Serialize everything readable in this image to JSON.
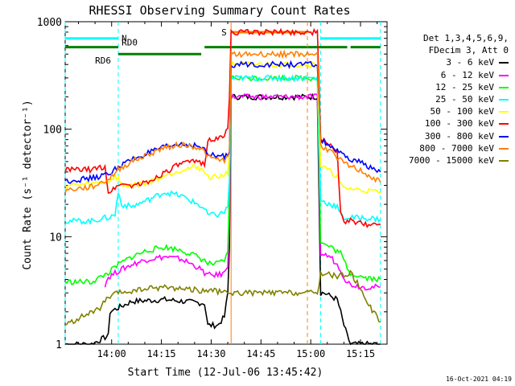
{
  "chart_data": {
    "type": "line",
    "title": "RHESSI Observing Summary Count Rates",
    "xlabel": "Start Time (12-Jul-06 13:45:42)",
    "ylabel": "Count Rate (s⁻¹ detector⁻¹)",
    "yscale": "log",
    "xlim": [
      0,
      97
    ],
    "ylim": [
      1,
      1000
    ],
    "x_ticks": [
      {
        "m": 14,
        "label": "14:00"
      },
      {
        "m": 29,
        "label": "14:15"
      },
      {
        "m": 44,
        "label": "14:30"
      },
      {
        "m": 59,
        "label": "14:45"
      },
      {
        "m": 74,
        "label": "15:00"
      },
      {
        "m": 89,
        "label": "15:15"
      }
    ],
    "y_ticks": [
      {
        "v": 1,
        "label": "1"
      },
      {
        "v": 10,
        "label": "10"
      },
      {
        "v": 100,
        "label": "100"
      },
      {
        "v": 1000,
        "label": "1000"
      }
    ],
    "legend_header": [
      "Det 1,3,4,5,6,9,",
      "FDecim 3, Att 0"
    ],
    "series": [
      {
        "name": "3 - 6 keV",
        "color": "#000000",
        "x": [
          0,
          8,
          13,
          13.5,
          20,
          30,
          42,
          43,
          46,
          48,
          49,
          49.5,
          50,
          76,
          77,
          78,
          80,
          82,
          83,
          84,
          85,
          86,
          90,
          92,
          95
        ],
        "values": [
          1,
          1,
          1.2,
          2,
          2.5,
          2.6,
          2.4,
          1.5,
          1.5,
          1.8,
          3,
          8,
          200,
          200,
          3,
          3,
          2.8,
          2.6,
          2,
          1.5,
          1.2,
          1,
          1,
          1,
          1
        ]
      },
      {
        "name": "6 - 12 keV",
        "color": "#ff00ff",
        "x": [
          12,
          13,
          16,
          20,
          25,
          30,
          35,
          40,
          42,
          43,
          46,
          48,
          49,
          49.5,
          50,
          76,
          77,
          78,
          80,
          83,
          84,
          85,
          86,
          90,
          95
        ],
        "values": [
          3.6,
          4.2,
          4.8,
          5.5,
          6.2,
          6.5,
          6.2,
          5.2,
          4.6,
          4.4,
          4.4,
          4.6,
          5.5,
          15,
          200,
          200,
          7,
          6.8,
          6.5,
          5,
          4.2,
          3.8,
          3.6,
          3.4,
          3.4
        ]
      },
      {
        "name": "12 - 25 keV",
        "color": "#00ff00",
        "x": [
          0,
          8,
          13,
          16,
          20,
          25,
          30,
          35,
          40,
          42,
          43,
          46,
          48,
          49,
          49.5,
          50,
          76,
          77,
          78,
          80,
          83,
          84,
          85,
          86,
          90,
          95
        ],
        "values": [
          3.8,
          3.8,
          4.6,
          5.5,
          6.5,
          7.5,
          8,
          7.5,
          6.5,
          6,
          5.6,
          5.6,
          6,
          7,
          25,
          300,
          300,
          9,
          8.5,
          8,
          7,
          6,
          5.2,
          4.6,
          4.2,
          4
        ]
      },
      {
        "name": "25 - 50 keV",
        "color": "#00ffff",
        "x": [
          0,
          8,
          12,
          13,
          15,
          16,
          17,
          20,
          25,
          30,
          35,
          40,
          42,
          43,
          46,
          48,
          49,
          49.5,
          50,
          76,
          77,
          78,
          80,
          82,
          83,
          84,
          86,
          90,
          95
        ],
        "values": [
          14,
          14,
          15,
          15,
          16,
          26,
          20,
          19,
          22,
          26,
          24,
          20,
          18,
          16,
          16,
          17,
          19,
          35,
          300,
          300,
          22,
          21,
          20,
          19,
          16,
          15,
          15,
          15,
          14.5
        ]
      },
      {
        "name": "50 - 100 keV",
        "color": "#ffff00",
        "x": [
          0,
          8,
          13,
          15,
          16,
          17,
          20,
          25,
          30,
          35,
          40,
          42,
          43,
          46,
          48,
          49,
          49.5,
          50,
          76,
          77,
          78,
          80,
          82,
          83,
          84,
          86,
          90,
          95
        ],
        "values": [
          30,
          31,
          33,
          36,
          35,
          30,
          30,
          32,
          37,
          42,
          45,
          40,
          36,
          36,
          38,
          40,
          60,
          400,
          400,
          45,
          44,
          40,
          36,
          30,
          28,
          28,
          27,
          26
        ]
      },
      {
        "name": "100 - 300 keV",
        "color": "#ff0000",
        "x": [
          0,
          8,
          12,
          13,
          15,
          16,
          20,
          25,
          30,
          35,
          40,
          42,
          43,
          46,
          48,
          49,
          49.5,
          50,
          76,
          77,
          78,
          80,
          82,
          83,
          84,
          86,
          90,
          95
        ],
        "values": [
          42,
          42,
          45,
          26,
          28,
          31,
          30,
          32,
          40,
          48,
          50,
          48,
          80,
          80,
          90,
          100,
          200,
          800,
          800,
          80,
          78,
          72,
          60,
          16,
          14,
          14,
          13,
          13
        ]
      },
      {
        "name": "300 - 800 keV",
        "color": "#0000ff",
        "x": [
          0,
          8,
          13,
          16,
          20,
          25,
          30,
          35,
          40,
          42,
          43,
          46,
          48,
          49,
          49.5,
          50,
          76,
          77,
          78,
          80,
          82,
          84,
          86,
          90,
          92,
          95
        ],
        "values": [
          33,
          35,
          38,
          45,
          52,
          60,
          68,
          73,
          70,
          64,
          58,
          56,
          56,
          58,
          62,
          400,
          400,
          78,
          76,
          70,
          62,
          56,
          52,
          48,
          44,
          40
        ]
      },
      {
        "name": "800 - 7000 keV",
        "color": "#ff8000",
        "x": [
          0,
          8,
          13,
          16,
          20,
          25,
          30,
          35,
          40,
          42,
          43,
          46,
          48,
          49,
          49.5,
          50,
          76,
          77,
          78,
          80,
          82,
          84,
          86,
          90,
          92,
          95
        ],
        "values": [
          27,
          29,
          34,
          42,
          50,
          58,
          68,
          72,
          68,
          62,
          55,
          52,
          52,
          54,
          60,
          500,
          500,
          70,
          68,
          62,
          55,
          48,
          45,
          40,
          36,
          32
        ]
      },
      {
        "name": "7000 - 15000 keV",
        "color": "#808000",
        "x": [
          0,
          5,
          10,
          13,
          16,
          20,
          25,
          30,
          35,
          40,
          42,
          43,
          46,
          48,
          49,
          49.5,
          50,
          76,
          77,
          78,
          80,
          82,
          84,
          86,
          88,
          90,
          92,
          95
        ],
        "values": [
          1.5,
          1.8,
          2.1,
          2.7,
          3,
          3.1,
          3.3,
          3.4,
          3.3,
          3.2,
          3.1,
          3.2,
          3.1,
          3,
          3,
          3,
          3,
          3,
          4.5,
          4.6,
          4.4,
          4.3,
          4.4,
          4.6,
          3.7,
          2.9,
          2.2,
          1.6
        ]
      }
    ],
    "annotations": [
      {
        "label": "N",
        "color": "#00ffff",
        "segments": [
          [
            0,
            16
          ],
          [
            77,
            95
          ]
        ],
        "level": 700,
        "vlines": [
          0,
          16,
          77,
          95
        ],
        "vline_style": "dashed"
      },
      {
        "label": "RD0",
        "color": "#008000",
        "segments": [
          [
            0,
            16
          ],
          [
            42,
            73
          ],
          [
            73,
            85
          ],
          [
            86,
            95
          ]
        ],
        "level": 580,
        "text_at": 17
      },
      {
        "label": "RD6",
        "color": "#008000",
        "segments": [
          [
            16,
            41
          ]
        ],
        "level": 500,
        "text_at": 9
      },
      {
        "label": "S",
        "color": "#ff8000",
        "segments": [
          [
            50,
            73
          ]
        ],
        "level": 800,
        "vlines": [
          50,
          73
        ],
        "vline_style": "mixed"
      }
    ]
  },
  "timestamp": "16-Oct-2021 04:19"
}
